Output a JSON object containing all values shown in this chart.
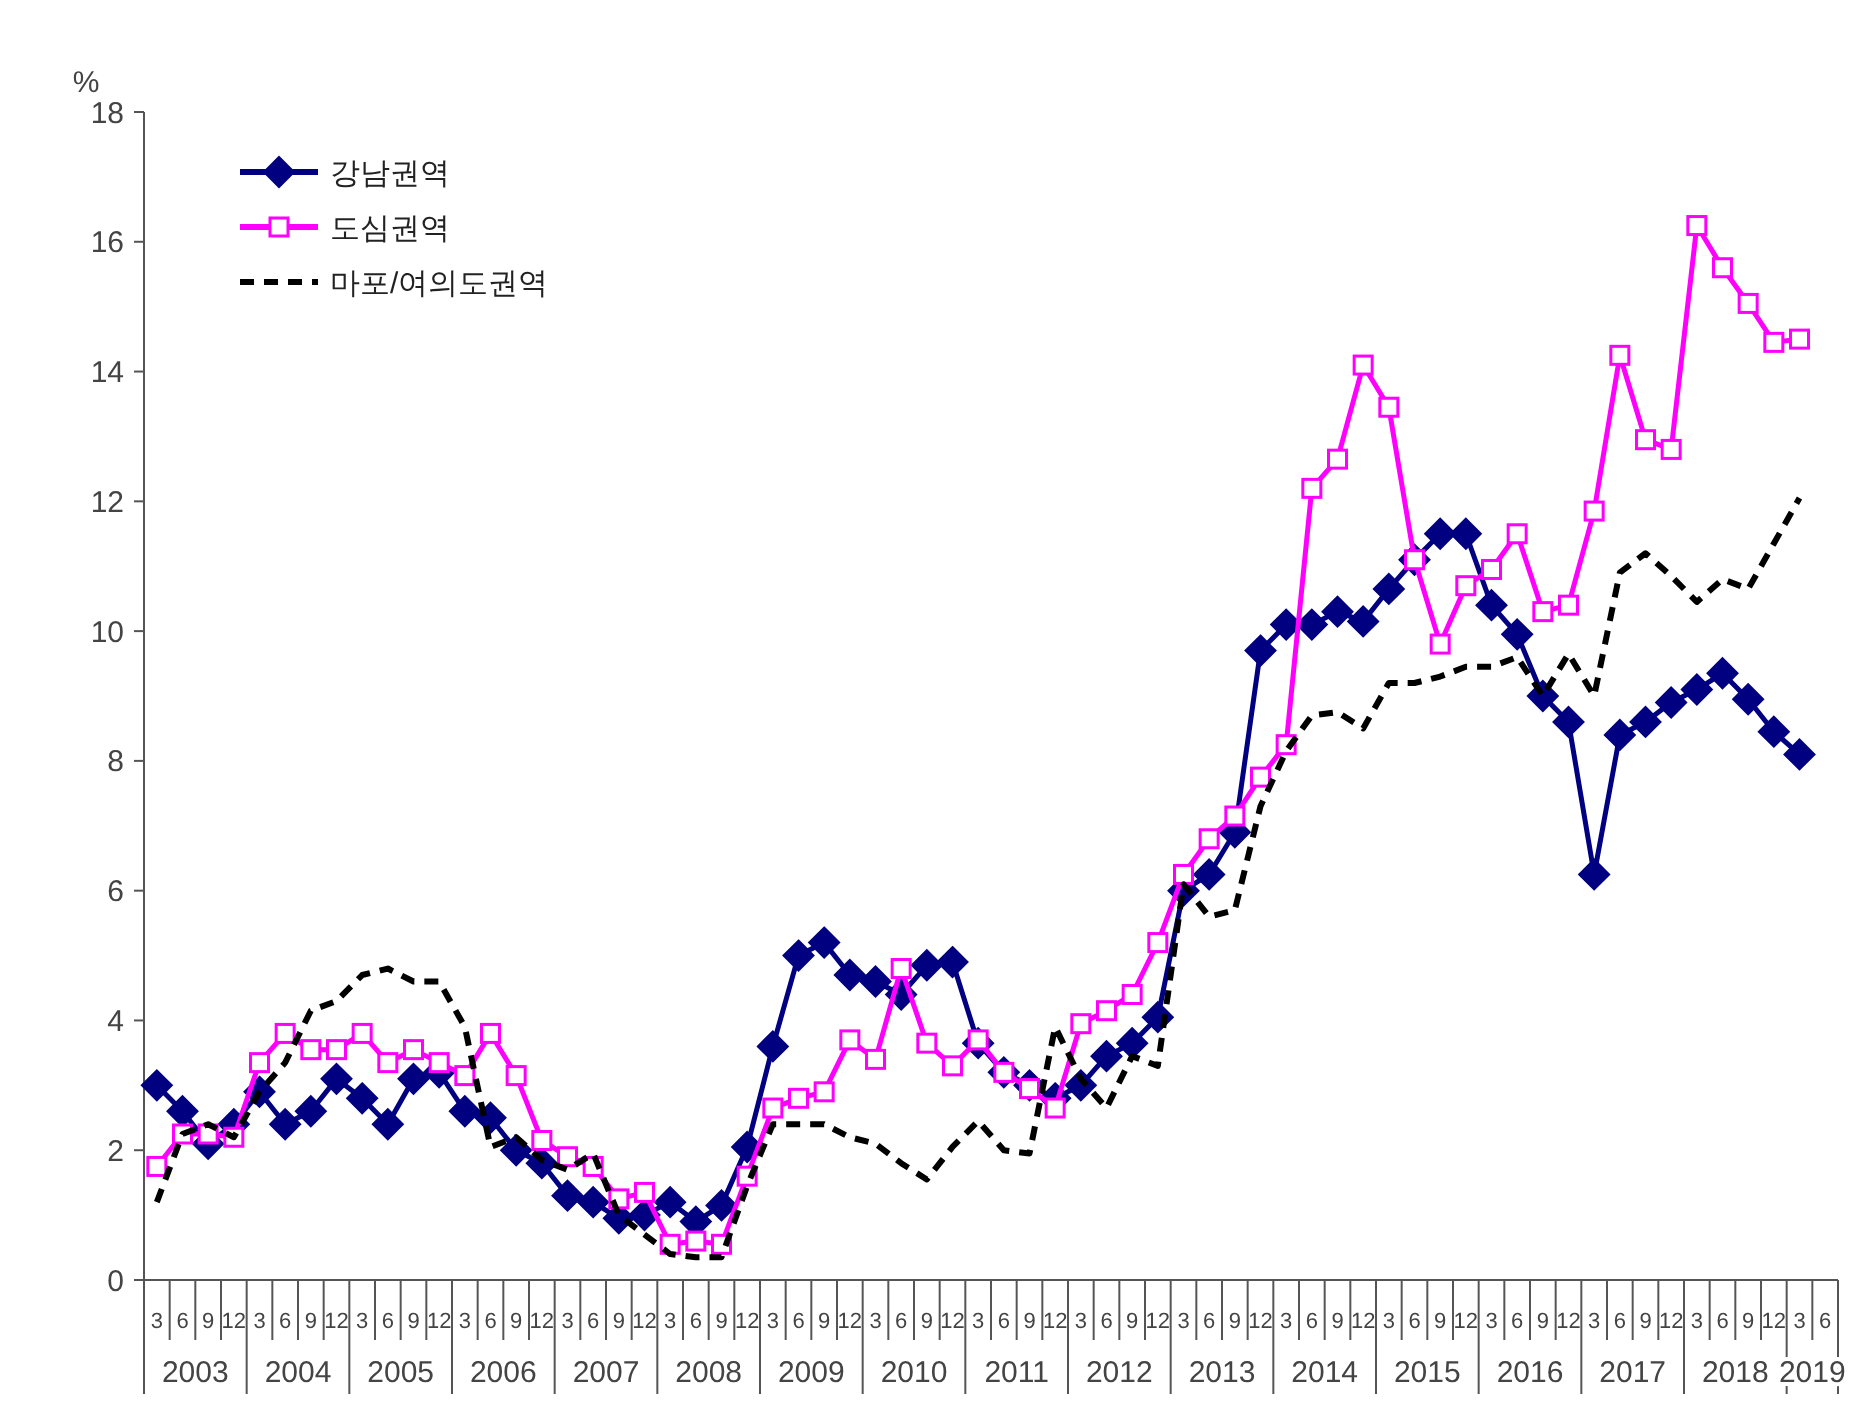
{
  "chart_data": {
    "type": "line",
    "ylabel": "%",
    "ylim": [
      0,
      18
    ],
    "yticks": [
      0,
      2,
      4,
      6,
      8,
      10,
      12,
      14,
      16,
      18
    ],
    "legend": "top left",
    "grid": false,
    "categories": [
      "3",
      "6",
      "9",
      "12",
      "3",
      "6",
      "9",
      "12",
      "3",
      "6",
      "9",
      "12",
      "3",
      "6",
      "9",
      "12",
      "3",
      "6",
      "9",
      "12",
      "3",
      "6",
      "9",
      "12",
      "3",
      "6",
      "9",
      "12",
      "3",
      "6",
      "9",
      "12",
      "3",
      "6",
      "9",
      "12",
      "3",
      "6",
      "9",
      "12",
      "3",
      "6",
      "9",
      "12",
      "3",
      "6",
      "9",
      "12",
      "3",
      "6",
      "9",
      "12",
      "3",
      "6",
      "9",
      "12",
      "3",
      "6",
      "9",
      "12",
      "3",
      "6",
      "9",
      "12",
      "3",
      "6"
    ],
    "annotations": [
      "2003",
      "2004",
      "2005",
      "2006",
      "2007",
      "2008",
      "2009",
      "2010",
      "2011",
      "2012",
      "2013",
      "2014",
      "2015",
      "2016",
      "2017",
      "2018",
      "2019"
    ],
    "series": [
      {
        "name": "강남권역",
        "color": "#000080",
        "marker": "diamond",
        "line_style": "solid",
        "values": [
          3.0,
          2.6,
          2.1,
          2.4,
          2.9,
          2.4,
          2.6,
          3.1,
          2.8,
          2.4,
          3.1,
          3.2,
          2.6,
          2.5,
          2.0,
          1.8,
          1.3,
          1.2,
          0.95,
          1.0,
          1.2,
          0.9,
          1.15,
          2.05,
          3.6,
          5.0,
          5.2,
          4.7,
          4.6,
          4.4,
          4.85,
          4.9,
          3.65,
          3.2,
          3.0,
          2.8,
          3.0,
          3.45,
          3.65,
          4.05,
          6.0,
          6.25,
          6.9,
          9.7,
          10.1,
          10.1,
          10.3,
          10.15,
          10.65,
          11.1,
          11.5,
          11.5,
          10.4,
          9.95,
          9.0,
          8.6,
          6.25,
          8.4,
          8.6,
          8.9,
          9.1,
          9.35,
          8.95,
          8.45,
          8.1,
          null
        ]
      },
      {
        "name": "도심권역",
        "color": "#ff00ff",
        "marker": "square",
        "line_style": "solid",
        "values": [
          1.75,
          2.25,
          2.25,
          2.2,
          3.35,
          3.8,
          3.55,
          3.55,
          3.8,
          3.35,
          3.55,
          3.35,
          3.15,
          3.8,
          3.15,
          2.15,
          1.9,
          1.75,
          1.25,
          1.35,
          0.55,
          0.6,
          0.55,
          1.6,
          2.65,
          2.8,
          2.9,
          3.7,
          3.4,
          4.8,
          3.65,
          3.3,
          3.7,
          3.2,
          2.95,
          2.65,
          3.95,
          4.15,
          4.4,
          5.2,
          6.25,
          6.8,
          7.15,
          7.75,
          8.25,
          12.2,
          12.65,
          14.1,
          13.45,
          11.1,
          9.8,
          10.7,
          10.95,
          11.5,
          10.3,
          10.4,
          11.85,
          14.25,
          12.95,
          12.8,
          16.25,
          15.6,
          15.05,
          14.45,
          14.5,
          null
        ]
      },
      {
        "name": "마포/여의도권역",
        "color": "#000000",
        "marker": "none",
        "line_style": "dashed",
        "values": [
          1.2,
          2.25,
          2.4,
          2.2,
          2.9,
          3.35,
          4.15,
          4.3,
          4.7,
          4.8,
          4.6,
          4.6,
          3.9,
          2.05,
          2.2,
          1.85,
          1.7,
          1.95,
          1.0,
          0.7,
          0.4,
          0.35,
          0.35,
          1.45,
          2.4,
          2.4,
          2.4,
          2.2,
          2.1,
          1.8,
          1.55,
          2.05,
          2.45,
          2.0,
          1.95,
          3.9,
          3.1,
          2.65,
          3.45,
          3.3,
          6.1,
          5.6,
          5.7,
          7.3,
          8.15,
          8.7,
          8.75,
          8.5,
          9.2,
          9.2,
          9.3,
          9.45,
          9.45,
          9.6,
          9.0,
          9.65,
          9.0,
          10.9,
          11.2,
          10.85,
          10.45,
          10.8,
          10.65,
          11.35,
          12.05,
          null
        ]
      }
    ]
  }
}
